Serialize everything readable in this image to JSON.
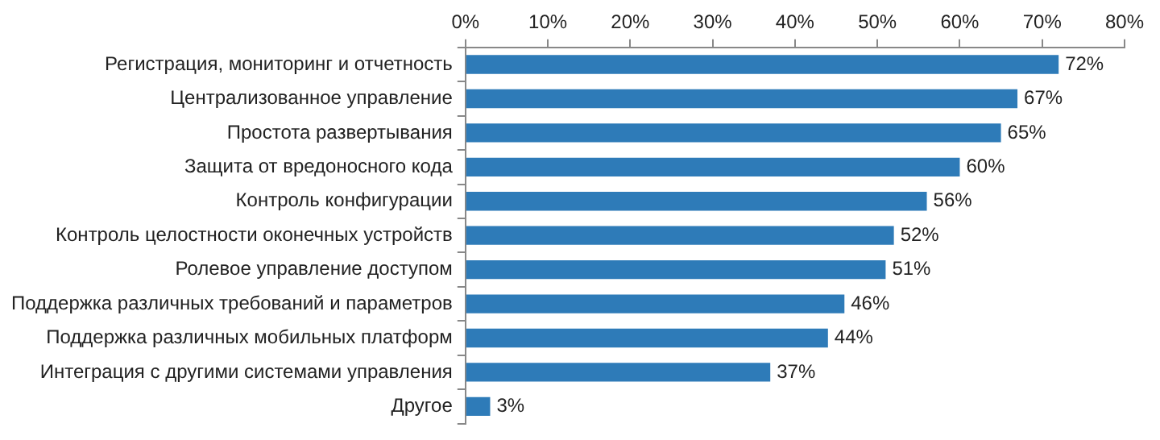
{
  "chart_data": {
    "type": "bar",
    "orientation": "horizontal",
    "categories": [
      "Регистрация, мониторинг и отчетность",
      "Централизованное управление",
      "Простота развертывания",
      "Защита от вредоносного кода",
      "Контроль конфигурации",
      "Контроль целостности оконечных устройств",
      "Ролевое управление доступом",
      "Поддержка различных требований и параметров",
      "Поддержка различных мобильных платформ",
      "Интеграция с другими системами управления",
      "Другое"
    ],
    "values": [
      72,
      67,
      65,
      60,
      56,
      52,
      51,
      46,
      44,
      37,
      3
    ],
    "value_labels": [
      "72%",
      "67%",
      "65%",
      "60%",
      "56%",
      "52%",
      "51%",
      "46%",
      "44%",
      "37%",
      "3%"
    ],
    "color": "#2e7bb8",
    "xlim": [
      0,
      80
    ],
    "xticks": [
      {
        "value": 0,
        "label": "0%"
      },
      {
        "value": 10,
        "label": "10%"
      },
      {
        "value": 20,
        "label": "20%"
      },
      {
        "value": 30,
        "label": "30%"
      },
      {
        "value": 40,
        "label": "40%"
      },
      {
        "value": 50,
        "label": "50%"
      },
      {
        "value": 60,
        "label": "60%"
      },
      {
        "value": 70,
        "label": "70%"
      },
      {
        "value": 80,
        "label": "80%"
      }
    ],
    "grid": false,
    "legend": false
  }
}
